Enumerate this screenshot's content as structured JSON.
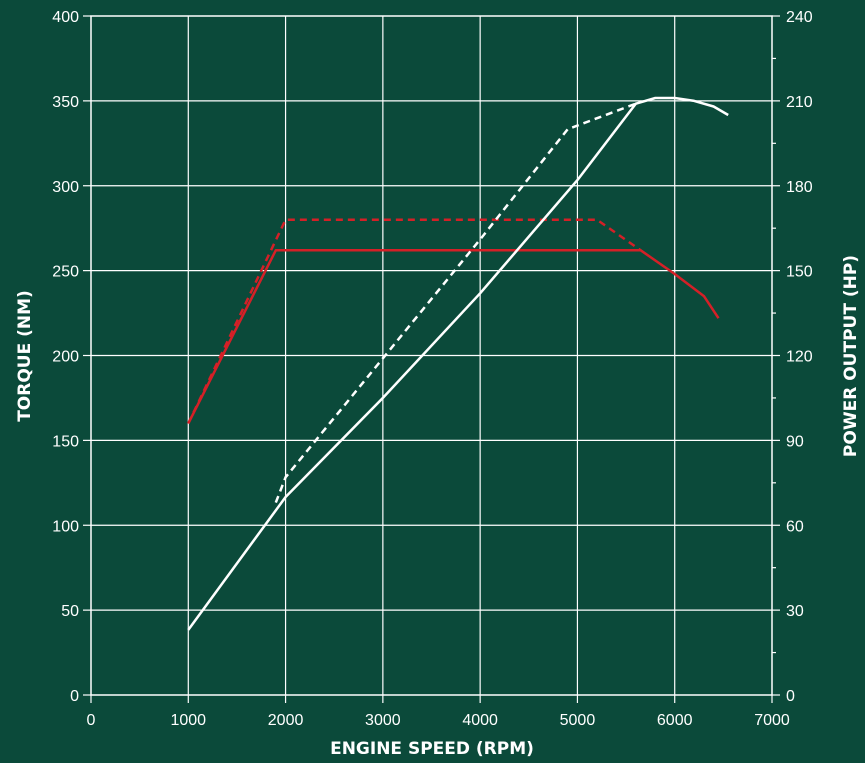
{
  "chart_data": {
    "type": "line",
    "xlabel": "ENGINE SPEED (RPM)",
    "ylabel": "TORQUE (NM)",
    "y2label": "POWER OUTPUT (HP)",
    "xlim": [
      0,
      7000
    ],
    "ylim": [
      0,
      400
    ],
    "y2lim": [
      0,
      240
    ],
    "x_ticks": [
      "0",
      "1000",
      "2000",
      "3000",
      "4000",
      "5000",
      "6000",
      "7000"
    ],
    "y_ticks": [
      "0",
      "50",
      "100",
      "150",
      "200",
      "250",
      "300",
      "350",
      "400"
    ],
    "y2_ticks": [
      "0",
      "30",
      "60",
      "90",
      "120",
      "150",
      "180",
      "210",
      "240"
    ],
    "grid": true,
    "colors": {
      "background": "#0b4a3a",
      "grid": "#ffffff",
      "torque": "#d42027",
      "power": "#ffffff"
    },
    "series": [
      {
        "axis": "left",
        "color": "#d42027",
        "style": "solid",
        "x": [
          1000,
          1900,
          5650,
          6000,
          6300,
          6450
        ],
        "y": [
          160,
          262,
          262,
          248,
          235,
          222
        ]
      },
      {
        "axis": "left",
        "color": "#d42027",
        "style": "dashed",
        "x": [
          1000,
          2000,
          5200,
          5650
        ],
        "y": [
          160,
          280,
          280,
          262
        ]
      },
      {
        "axis": "right",
        "color": "#ffffff",
        "style": "solid",
        "x": [
          1000,
          2000,
          3000,
          4000,
          5000,
          5600,
          5800,
          6000,
          6200,
          6400,
          6550
        ],
        "y": [
          23,
          70,
          105,
          142,
          182,
          209,
          211,
          211,
          210,
          208,
          205
        ]
      },
      {
        "axis": "right",
        "color": "#ffffff",
        "style": "dashed",
        "x": [
          1900,
          2000,
          3000,
          4000,
          4900,
          5600
        ],
        "y": [
          68,
          77,
          119,
          161,
          200,
          209
        ]
      }
    ]
  }
}
